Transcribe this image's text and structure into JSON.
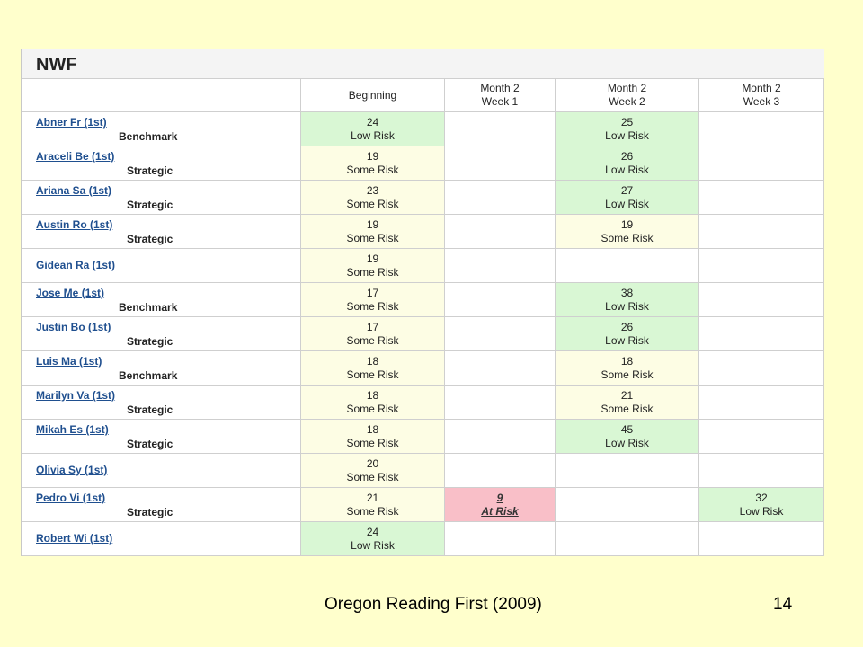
{
  "report": {
    "title": "NWF",
    "columns": [
      {
        "line1": "",
        "line2": ""
      },
      {
        "line1": "Beginning",
        "line2": ""
      },
      {
        "line1": "Month 2",
        "line2": "Week 1"
      },
      {
        "line1": "Month 2",
        "line2": "Week 2"
      },
      {
        "line1": "Month 2",
        "line2": "Week 3"
      }
    ],
    "rows": [
      {
        "student": "Abner Fr (1st)",
        "level": "Benchmark",
        "beginning": {
          "score": "24",
          "risk": "Low Risk",
          "status": "low"
        },
        "week1": null,
        "week2": {
          "score": "25",
          "risk": "Low Risk",
          "status": "low"
        },
        "week3": null
      },
      {
        "student": "Araceli Be (1st)",
        "level": "Strategic",
        "beginning": {
          "score": "19",
          "risk": "Some Risk",
          "status": "some"
        },
        "week1": null,
        "week2": {
          "score": "26",
          "risk": "Low Risk",
          "status": "low"
        },
        "week3": null
      },
      {
        "student": "Ariana Sa (1st)",
        "level": "Strategic",
        "beginning": {
          "score": "23",
          "risk": "Some Risk",
          "status": "some"
        },
        "week1": null,
        "week2": {
          "score": "27",
          "risk": "Low Risk",
          "status": "low"
        },
        "week3": null
      },
      {
        "student": "Austin Ro (1st)",
        "level": "Strategic",
        "beginning": {
          "score": "19",
          "risk": "Some Risk",
          "status": "some"
        },
        "week1": null,
        "week2": {
          "score": "19",
          "risk": "Some Risk",
          "status": "some"
        },
        "week3": null
      },
      {
        "student": "Gidean Ra (1st)",
        "level": "",
        "beginning": {
          "score": "19",
          "risk": "Some Risk",
          "status": "some"
        },
        "week1": null,
        "week2": null,
        "week3": null
      },
      {
        "student": "Jose Me (1st)",
        "level": "Benchmark",
        "beginning": {
          "score": "17",
          "risk": "Some Risk",
          "status": "some"
        },
        "week1": null,
        "week2": {
          "score": "38",
          "risk": "Low Risk",
          "status": "low"
        },
        "week3": null
      },
      {
        "student": "Justin Bo (1st)",
        "level": "Strategic",
        "beginning": {
          "score": "17",
          "risk": "Some Risk",
          "status": "some"
        },
        "week1": null,
        "week2": {
          "score": "26",
          "risk": "Low Risk",
          "status": "low"
        },
        "week3": null
      },
      {
        "student": "Luis Ma (1st)",
        "level": "Benchmark",
        "beginning": {
          "score": "18",
          "risk": "Some Risk",
          "status": "some"
        },
        "week1": null,
        "week2": {
          "score": "18",
          "risk": "Some Risk",
          "status": "some"
        },
        "week3": null
      },
      {
        "student": "Marilyn Va (1st)",
        "level": "Strategic",
        "beginning": {
          "score": "18",
          "risk": "Some Risk",
          "status": "some"
        },
        "week1": null,
        "week2": {
          "score": "21",
          "risk": "Some Risk",
          "status": "some"
        },
        "week3": null
      },
      {
        "student": "Mikah Es (1st)",
        "level": "Strategic",
        "beginning": {
          "score": "18",
          "risk": "Some Risk",
          "status": "some"
        },
        "week1": null,
        "week2": {
          "score": "45",
          "risk": "Low Risk",
          "status": "low"
        },
        "week3": null
      },
      {
        "student": "Olivia Sy (1st)",
        "level": "",
        "beginning": {
          "score": "20",
          "risk": "Some Risk",
          "status": "some"
        },
        "week1": null,
        "week2": null,
        "week3": null
      },
      {
        "student": "Pedro Vi (1st)",
        "level": "Strategic",
        "beginning": {
          "score": "21",
          "risk": "Some Risk",
          "status": "some"
        },
        "week1": {
          "score": "9",
          "risk": "At Risk",
          "status": "at"
        },
        "week2": null,
        "week3": {
          "score": "32",
          "risk": "Low Risk",
          "status": "low"
        }
      },
      {
        "student": "Robert Wi (1st)",
        "level": "",
        "beginning": {
          "score": "24",
          "risk": "Low Risk",
          "status": "low"
        },
        "week1": null,
        "week2": null,
        "week3": null
      }
    ],
    "status_colors": {
      "low": "#d9f7d4",
      "some": "#fdfde4",
      "at": "#f9bfc8"
    }
  },
  "footer": {
    "source": "Oregon Reading First (2009)",
    "page_number": "14"
  }
}
